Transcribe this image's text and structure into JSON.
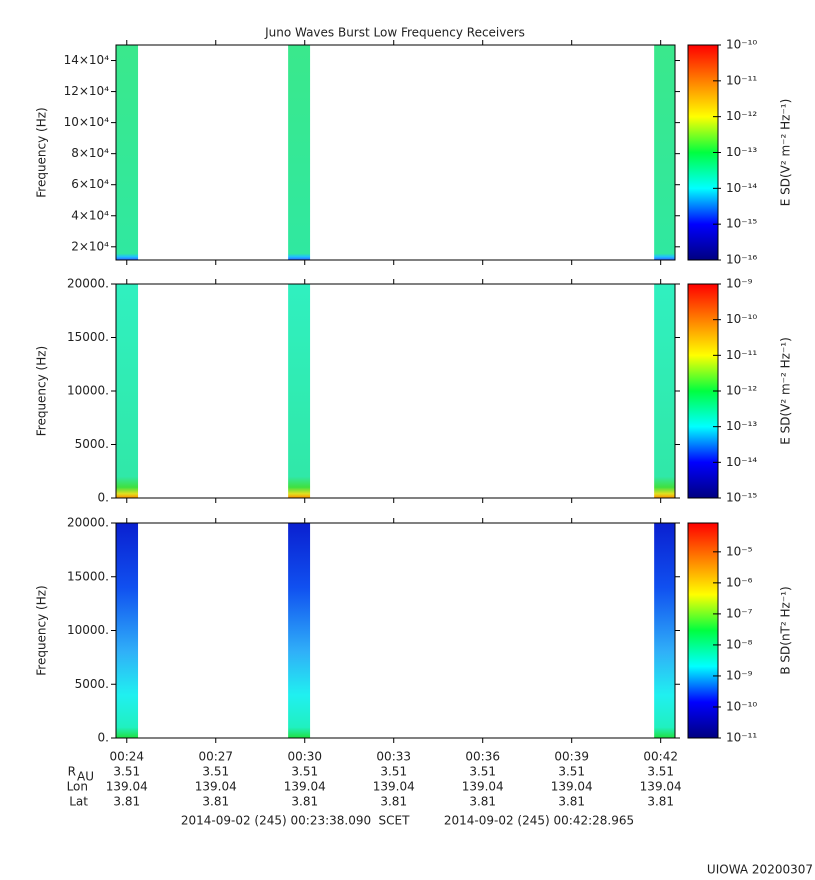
{
  "title": "Juno Waves Burst Low Frequency Receivers",
  "colormap": [
    "#000080",
    "#0000ff",
    "#00ffff",
    "#00ff40",
    "#ffff00",
    "#ff8000",
    "#ff0000"
  ],
  "xaxis": {
    "xlim": [
      23.637,
      42.483
    ],
    "xticks": [
      {
        "value": 24,
        "label": "00:24"
      },
      {
        "value": 27,
        "label": "00:27"
      },
      {
        "value": 30,
        "label": "00:30"
      },
      {
        "value": 33,
        "label": "00:33"
      },
      {
        "value": 36,
        "label": "00:36"
      },
      {
        "value": 39,
        "label": "00:39"
      },
      {
        "value": 42,
        "label": "00:42"
      }
    ]
  },
  "chart_data": [
    {
      "type": "spectrogram",
      "ylabel": "Frequency (Hz)",
      "ylim": [
        11500,
        150000
      ],
      "yticks": [
        {
          "value": 20000,
          "label": "2×10⁴"
        },
        {
          "value": 40000,
          "label": "4×10⁴"
        },
        {
          "value": 60000,
          "label": "6×10⁴"
        },
        {
          "value": 80000,
          "label": "8×10⁴"
        },
        {
          "value": 100000,
          "label": "10×10⁴"
        },
        {
          "value": 120000,
          "label": "12×10⁴"
        },
        {
          "value": 140000,
          "label": "14×10⁴"
        }
      ],
      "clabel": "E SD(V² m⁻² Hz⁻¹)",
      "clog": true,
      "clim": [
        1e-16,
        1e-10
      ],
      "cticks": [
        {
          "value": 1e-16,
          "label": "10⁻¹⁶"
        },
        {
          "value": 1e-15,
          "label": "10⁻¹⁵"
        },
        {
          "value": 1e-14,
          "label": "10⁻¹⁴"
        },
        {
          "value": 1e-13,
          "label": "10⁻¹³"
        },
        {
          "value": 1e-12,
          "label": "10⁻¹²"
        },
        {
          "value": 1e-11,
          "label": "10⁻¹¹"
        },
        {
          "value": 1e-10,
          "label": "10⁻¹⁰"
        }
      ],
      "bursts": [
        [
          23.637,
          24.38
        ],
        [
          29.44,
          30.18
        ],
        [
          41.78,
          42.483
        ]
      ],
      "burst_colors": [
        {
          "offset": 0,
          "color": "#3ae88c"
        },
        {
          "offset": 0.97,
          "color": "#30e8a0"
        },
        {
          "offset": 0.985,
          "color": "#20c0ff"
        },
        {
          "offset": 1,
          "color": "#3060ff"
        }
      ]
    },
    {
      "type": "spectrogram",
      "ylabel": "Frequency (Hz)",
      "ylim": [
        0,
        20000
      ],
      "yticks": [
        {
          "value": 0,
          "label": "0."
        },
        {
          "value": 5000,
          "label": "5000."
        },
        {
          "value": 10000,
          "label": "10000."
        },
        {
          "value": 15000,
          "label": "15000."
        },
        {
          "value": 20000,
          "label": "20000."
        }
      ],
      "clabel": "E SD(V² m⁻² Hz⁻¹)",
      "clog": true,
      "clim": [
        1e-15,
        1e-09
      ],
      "cticks": [
        {
          "value": 1e-15,
          "label": "10⁻¹⁵"
        },
        {
          "value": 1e-14,
          "label": "10⁻¹⁴"
        },
        {
          "value": 1e-13,
          "label": "10⁻¹³"
        },
        {
          "value": 1e-12,
          "label": "10⁻¹²"
        },
        {
          "value": 1e-11,
          "label": "10⁻¹¹"
        },
        {
          "value": 1e-10,
          "label": "10⁻¹⁰"
        },
        {
          "value": 1e-09,
          "label": "10⁻⁹"
        }
      ],
      "bursts": [
        [
          23.637,
          24.38
        ],
        [
          29.44,
          30.18
        ],
        [
          41.78,
          42.483
        ]
      ],
      "burst_colors": [
        {
          "offset": 0,
          "color": "#30f0c0"
        },
        {
          "offset": 0.9,
          "color": "#30e8a8"
        },
        {
          "offset": 0.95,
          "color": "#40e040"
        },
        {
          "offset": 0.98,
          "color": "#e0e020"
        },
        {
          "offset": 1,
          "color": "#ff9000"
        }
      ]
    },
    {
      "type": "spectrogram",
      "ylabel": "Frequency (Hz)",
      "ylim": [
        0,
        20000
      ],
      "yticks": [
        {
          "value": 0,
          "label": "0."
        },
        {
          "value": 5000,
          "label": "5000."
        },
        {
          "value": 10000,
          "label": "10000."
        },
        {
          "value": 15000,
          "label": "15000."
        },
        {
          "value": 20000,
          "label": "20000."
        }
      ],
      "clabel": "B SD(nT² Hz⁻¹)",
      "clog": true,
      "clim": [
        1e-11,
        8.5e-05
      ],
      "cticks": [
        {
          "value": 1e-11,
          "label": "10⁻¹¹"
        },
        {
          "value": 1e-10,
          "label": "10⁻¹⁰"
        },
        {
          "value": 1e-09,
          "label": "10⁻⁹"
        },
        {
          "value": 1e-08,
          "label": "10⁻⁸"
        },
        {
          "value": 1e-07,
          "label": "10⁻⁷"
        },
        {
          "value": 1e-06,
          "label": "10⁻⁶"
        },
        {
          "value": 1e-05,
          "label": "10⁻⁵"
        }
      ],
      "bursts": [
        [
          23.637,
          24.38
        ],
        [
          29.44,
          30.18
        ],
        [
          41.78,
          42.483
        ]
      ],
      "burst_colors": [
        {
          "offset": 0,
          "color": "#0a20d0"
        },
        {
          "offset": 0.3,
          "color": "#1050f0"
        },
        {
          "offset": 0.6,
          "color": "#30b0f8"
        },
        {
          "offset": 0.8,
          "color": "#20f0f0"
        },
        {
          "offset": 0.95,
          "color": "#20f0c0"
        },
        {
          "offset": 1,
          "color": "#20e040"
        }
      ]
    }
  ],
  "ephemeris": [
    {
      "label": "R",
      "sub": "AU",
      "values": [
        3.51,
        3.51,
        3.51,
        3.51,
        3.51,
        3.51,
        3.51
      ]
    },
    {
      "label": "Lon",
      "values": [
        139.04,
        139.04,
        139.04,
        139.04,
        139.04,
        139.04,
        139.04
      ]
    },
    {
      "label": "Lat",
      "values": [
        3.81,
        3.81,
        3.81,
        3.81,
        3.81,
        3.81,
        3.81
      ]
    }
  ],
  "time_range": {
    "start": "2014-09-02 (245) 00:23:38.090",
    "label": "SCET",
    "end": "2014-09-02 (245) 00:42:28.965"
  },
  "credit": "UIOWA 20200307"
}
